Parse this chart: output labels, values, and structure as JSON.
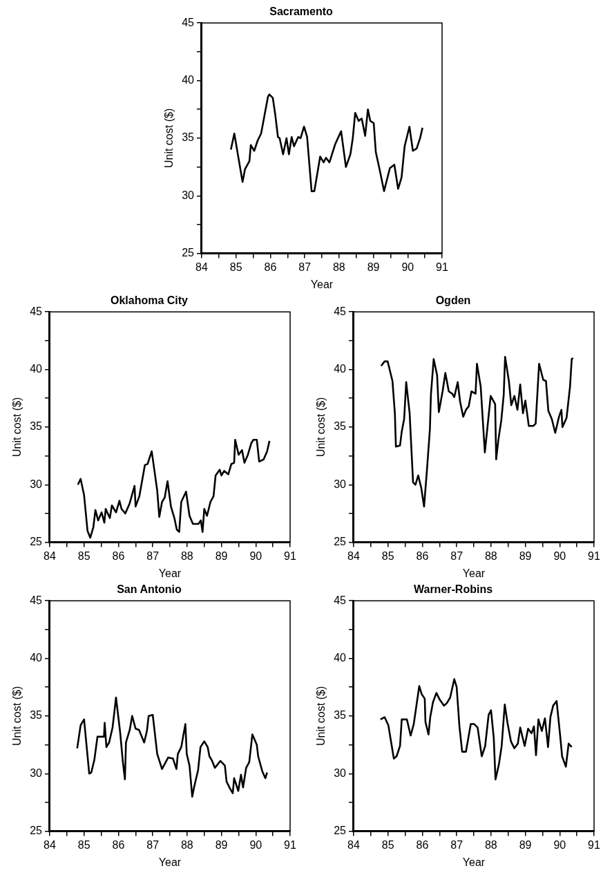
{
  "chart_data": [
    {
      "type": "line",
      "title": "Sacramento",
      "xlabel": "Year",
      "ylabel": "Unit cost ($)",
      "xlim": [
        84,
        91
      ],
      "ylim": [
        25,
        45
      ],
      "xticks": [
        84,
        {
          "value": 84.5,
          "label": null
        },
        85,
        {
          "value": 85.5,
          "label": null
        },
        86,
        {
          "value": 86.5,
          "label": null
        },
        87,
        {
          "value": 87.5,
          "label": null
        },
        88,
        {
          "value": 88.5,
          "label": null
        },
        89,
        {
          "value": 89.5,
          "label": null
        },
        90,
        {
          "value": 90.5,
          "label": null
        },
        91
      ],
      "yticks": [
        25,
        {
          "value": 27.5,
          "label": null
        },
        30,
        {
          "value": 32.5,
          "label": null
        },
        35,
        {
          "value": 37.5,
          "label": null
        },
        40,
        {
          "value": 42.5,
          "label": null
        },
        45
      ],
      "grid": false,
      "legend": false,
      "marker": "none",
      "line_style": "solid",
      "series": [
        {
          "color": "#000000",
          "x": [
            84.85,
            84.95,
            85.19,
            85.26,
            85.39,
            85.43,
            85.53,
            85.63,
            85.73,
            85.93,
            85.97,
            86.07,
            86.14,
            86.22,
            86.27,
            86.37,
            86.47,
            86.54,
            86.62,
            86.69,
            86.81,
            86.88,
            86.98,
            87.07,
            87.2,
            87.28,
            87.45,
            87.55,
            87.62,
            87.72,
            87.89,
            88.06,
            88.2,
            88.33,
            88.4,
            88.47,
            88.57,
            88.66,
            88.76,
            88.84,
            88.91,
            89.01,
            89.07,
            89.18,
            89.31,
            89.48,
            89.61,
            89.72,
            89.82,
            89.91,
            90.05,
            90.15,
            90.26,
            90.36,
            90.43
          ],
          "values": [
            34.0,
            35.4,
            31.2,
            32.3,
            33.0,
            34.4,
            33.9,
            34.8,
            35.4,
            38.6,
            38.8,
            38.5,
            37.1,
            35.1,
            35.0,
            33.6,
            35.0,
            33.6,
            35.1,
            34.3,
            35.1,
            35.0,
            36.0,
            35.1,
            30.4,
            30.4,
            33.4,
            32.9,
            33.3,
            32.9,
            34.5,
            35.6,
            32.5,
            33.6,
            35.0,
            37.2,
            36.5,
            36.7,
            35.2,
            37.5,
            36.5,
            36.3,
            33.8,
            32.3,
            30.4,
            32.4,
            32.7,
            30.6,
            31.6,
            34.3,
            36.0,
            33.9,
            34.1,
            35.0,
            35.9
          ]
        }
      ]
    },
    {
      "type": "line",
      "title": "Oklahoma City",
      "xlabel": "Year",
      "ylabel": "Unit cost ($)",
      "xlim": [
        84,
        91
      ],
      "ylim": [
        25,
        45
      ],
      "xticks": [
        84,
        {
          "value": 84.5,
          "label": null
        },
        85,
        {
          "value": 85.5,
          "label": null
        },
        86,
        {
          "value": 86.5,
          "label": null
        },
        87,
        {
          "value": 87.5,
          "label": null
        },
        88,
        {
          "value": 88.5,
          "label": null
        },
        89,
        {
          "value": 89.5,
          "label": null
        },
        90,
        {
          "value": 90.5,
          "label": null
        },
        91
      ],
      "yticks": [
        25,
        {
          "value": 27.5,
          "label": null
        },
        30,
        {
          "value": 32.5,
          "label": null
        },
        35,
        {
          "value": 37.5,
          "label": null
        },
        40,
        {
          "value": 42.5,
          "label": null
        },
        45
      ],
      "grid": false,
      "legend": false,
      "marker": "none",
      "line_style": "solid",
      "series": [
        {
          "color": "#000000",
          "x": [
            84.82,
            84.9,
            85.0,
            85.1,
            85.18,
            85.27,
            85.33,
            85.41,
            85.51,
            85.59,
            85.63,
            85.75,
            85.81,
            85.93,
            86.03,
            86.09,
            86.2,
            86.33,
            86.47,
            86.5,
            86.61,
            86.77,
            86.85,
            86.97,
            87.13,
            87.19,
            87.27,
            87.35,
            87.43,
            87.53,
            87.63,
            87.7,
            87.77,
            87.83,
            87.97,
            88.07,
            88.17,
            88.33,
            88.4,
            88.45,
            88.5,
            88.58,
            88.68,
            88.77,
            88.83,
            88.95,
            89.0,
            89.08,
            89.2,
            89.29,
            89.37,
            89.4,
            89.5,
            89.6,
            89.67,
            89.77,
            89.87,
            89.93,
            90.03,
            90.1,
            90.23,
            90.33,
            90.4
          ],
          "values": [
            30.0,
            30.5,
            29.1,
            26.0,
            25.4,
            26.3,
            27.8,
            26.9,
            27.6,
            26.7,
            27.9,
            27.1,
            28.2,
            27.6,
            28.6,
            27.9,
            27.5,
            28.4,
            29.9,
            28.1,
            29.0,
            31.7,
            31.8,
            32.9,
            29.5,
            27.2,
            28.5,
            28.9,
            30.3,
            28.1,
            27.1,
            26.1,
            25.9,
            28.5,
            29.4,
            27.3,
            26.6,
            26.6,
            26.9,
            25.9,
            27.9,
            27.3,
            28.5,
            29.0,
            30.8,
            31.3,
            30.8,
            31.2,
            30.9,
            31.8,
            31.9,
            33.9,
            32.6,
            33.0,
            31.9,
            32.6,
            33.6,
            33.9,
            33.9,
            32.0,
            32.2,
            32.9,
            33.8
          ]
        }
      ]
    },
    {
      "type": "line",
      "title": "Ogden",
      "xlabel": "Year",
      "ylabel": "Unit cost ($)",
      "xlim": [
        84,
        91
      ],
      "ylim": [
        25,
        45
      ],
      "xticks": [
        84,
        {
          "value": 84.5,
          "label": null
        },
        85,
        {
          "value": 85.5,
          "label": null
        },
        86,
        {
          "value": 86.5,
          "label": null
        },
        87,
        {
          "value": 87.5,
          "label": null
        },
        88,
        {
          "value": 88.5,
          "label": null
        },
        89,
        {
          "value": 89.5,
          "label": null
        },
        90,
        {
          "value": 90.5,
          "label": null
        },
        91
      ],
      "yticks": [
        25,
        {
          "value": 27.5,
          "label": null
        },
        30,
        {
          "value": 32.5,
          "label": null
        },
        35,
        {
          "value": 37.5,
          "label": null
        },
        40,
        {
          "value": 42.5,
          "label": null
        },
        45
      ],
      "grid": false,
      "legend": false,
      "marker": "none",
      "line_style": "solid",
      "series": [
        {
          "color": "#000000",
          "x": [
            84.8,
            84.9,
            84.99,
            85.13,
            85.2,
            85.23,
            85.35,
            85.4,
            85.47,
            85.53,
            85.63,
            85.73,
            85.8,
            85.88,
            85.97,
            86.05,
            86.13,
            86.22,
            86.25,
            86.33,
            86.43,
            86.48,
            86.59,
            86.67,
            86.77,
            86.87,
            86.93,
            87.03,
            87.1,
            87.19,
            87.27,
            87.35,
            87.43,
            87.55,
            87.59,
            87.7,
            87.82,
            87.99,
            88.12,
            88.15,
            88.21,
            88.3,
            88.37,
            88.41,
            88.52,
            88.59,
            88.68,
            88.77,
            88.85,
            88.93,
            89.0,
            89.1,
            89.23,
            89.3,
            89.4,
            89.52,
            89.6,
            89.67,
            89.77,
            89.87,
            89.98,
            90.05,
            90.08,
            90.2,
            90.3,
            90.35,
            90.39
          ],
          "values": [
            40.3,
            40.7,
            40.7,
            39.0,
            36.2,
            33.3,
            33.4,
            34.6,
            35.7,
            38.9,
            36.2,
            30.2,
            30.0,
            30.8,
            29.7,
            28.1,
            31.1,
            34.8,
            37.8,
            40.9,
            39.5,
            36.3,
            38.1,
            39.7,
            38.1,
            37.9,
            37.6,
            38.9,
            37.2,
            35.9,
            36.5,
            36.8,
            38.1,
            37.9,
            40.5,
            38.5,
            32.8,
            37.7,
            37.0,
            32.2,
            33.8,
            35.6,
            37.8,
            41.1,
            39.0,
            36.9,
            37.7,
            36.5,
            38.7,
            36.2,
            37.3,
            35.1,
            35.1,
            35.3,
            40.5,
            39.1,
            39.0,
            36.4,
            35.7,
            34.5,
            35.9,
            36.5,
            35.0,
            35.8,
            38.5,
            40.9,
            41.0
          ]
        }
      ]
    },
    {
      "type": "line",
      "title": "San Antonio",
      "xlabel": "Year",
      "ylabel": "Unit cost ($)",
      "xlim": [
        84,
        91
      ],
      "ylim": [
        25,
        45
      ],
      "xticks": [
        84,
        {
          "value": 84.5,
          "label": null
        },
        85,
        {
          "value": 85.5,
          "label": null
        },
        86,
        {
          "value": 86.5,
          "label": null
        },
        87,
        {
          "value": 87.5,
          "label": null
        },
        88,
        {
          "value": 88.5,
          "label": null
        },
        89,
        {
          "value": 89.5,
          "label": null
        },
        90,
        {
          "value": 90.5,
          "label": null
        },
        91
      ],
      "yticks": [
        25,
        {
          "value": 27.5,
          "label": null
        },
        30,
        {
          "value": 32.5,
          "label": null
        },
        35,
        {
          "value": 37.5,
          "label": null
        },
        40,
        {
          "value": 42.5,
          "label": null
        },
        45
      ],
      "grid": false,
      "legend": false,
      "marker": "none",
      "line_style": "solid",
      "series": [
        {
          "color": "#000000",
          "x": [
            84.8,
            84.9,
            85.0,
            85.15,
            85.21,
            85.3,
            85.39,
            85.5,
            85.58,
            85.6,
            85.65,
            85.73,
            85.83,
            85.93,
            86.05,
            86.13,
            86.19,
            86.22,
            86.33,
            86.4,
            86.5,
            86.6,
            86.75,
            86.83,
            86.88,
            87.0,
            87.13,
            87.27,
            87.45,
            87.59,
            87.69,
            87.73,
            87.83,
            87.95,
            87.99,
            88.07,
            88.15,
            88.21,
            88.32,
            88.39,
            88.5,
            88.6,
            88.65,
            88.73,
            88.81,
            88.97,
            89.1,
            89.15,
            89.25,
            89.33,
            89.37,
            89.49,
            89.57,
            89.63,
            89.72,
            89.81,
            89.9,
            90.03,
            90.07,
            90.19,
            90.28,
            90.33
          ],
          "values": [
            32.2,
            34.2,
            34.7,
            30.0,
            30.1,
            31.2,
            33.2,
            33.2,
            33.2,
            34.4,
            32.3,
            32.7,
            34.0,
            36.6,
            33.6,
            31.0,
            29.5,
            32.7,
            33.8,
            35.0,
            33.9,
            33.8,
            32.7,
            33.7,
            35.0,
            35.1,
            31.7,
            30.4,
            31.4,
            31.3,
            30.4,
            31.7,
            32.3,
            34.3,
            31.7,
            30.7,
            28.0,
            28.9,
            30.3,
            32.3,
            32.8,
            32.3,
            31.5,
            31.1,
            30.5,
            31.1,
            30.7,
            29.3,
            28.7,
            28.3,
            29.6,
            28.5,
            29.9,
            28.8,
            30.5,
            31.0,
            33.4,
            32.5,
            31.5,
            30.2,
            29.6,
            30.1
          ]
        }
      ]
    },
    {
      "type": "line",
      "title": "Warner-Robins",
      "xlabel": "Year",
      "ylabel": "Unit cost ($)",
      "xlim": [
        84,
        91
      ],
      "ylim": [
        25,
        45
      ],
      "xticks": [
        84,
        {
          "value": 84.5,
          "label": null
        },
        85,
        {
          "value": 85.5,
          "label": null
        },
        86,
        {
          "value": 86.5,
          "label": null
        },
        87,
        {
          "value": 87.5,
          "label": null
        },
        88,
        {
          "value": 88.5,
          "label": null
        },
        89,
        {
          "value": 89.5,
          "label": null
        },
        90,
        {
          "value": 90.5,
          "label": null
        },
        91
      ],
      "yticks": [
        25,
        {
          "value": 27.5,
          "label": null
        },
        30,
        {
          "value": 32.5,
          "label": null
        },
        35,
        {
          "value": 37.5,
          "label": null
        },
        40,
        {
          "value": 42.5,
          "label": null
        },
        45
      ],
      "grid": false,
      "legend": false,
      "marker": "none",
      "line_style": "solid",
      "series": [
        {
          "color": "#000000",
          "x": [
            84.78,
            84.9,
            85.01,
            85.17,
            85.25,
            85.35,
            85.4,
            85.55,
            85.66,
            85.75,
            85.91,
            85.98,
            86.07,
            86.09,
            86.18,
            86.23,
            86.31,
            86.41,
            86.51,
            86.63,
            86.71,
            86.81,
            86.93,
            87.0,
            87.08,
            87.16,
            87.27,
            87.41,
            87.51,
            87.61,
            87.73,
            87.83,
            87.93,
            88.0,
            88.08,
            88.13,
            88.23,
            88.31,
            88.4,
            88.48,
            88.58,
            88.68,
            88.78,
            88.85,
            88.98,
            89.08,
            89.18,
            89.25,
            89.31,
            89.38,
            89.48,
            89.57,
            89.66,
            89.73,
            89.81,
            89.91,
            90.01,
            90.07,
            90.18,
            90.26,
            90.35
          ],
          "values": [
            34.7,
            34.9,
            34.2,
            31.3,
            31.5,
            32.4,
            34.7,
            34.7,
            33.3,
            34.3,
            37.6,
            36.9,
            36.5,
            34.5,
            33.4,
            34.9,
            36.2,
            37.0,
            36.4,
            35.9,
            36.1,
            36.6,
            38.2,
            37.5,
            34.1,
            31.9,
            31.9,
            34.3,
            34.3,
            34.0,
            31.5,
            32.4,
            35.1,
            35.5,
            33.1,
            29.5,
            30.8,
            32.4,
            36.0,
            34.4,
            32.8,
            32.2,
            32.6,
            34.0,
            32.4,
            33.9,
            33.5,
            34.1,
            31.6,
            34.7,
            33.7,
            34.8,
            32.3,
            34.9,
            35.9,
            36.3,
            33.4,
            31.5,
            30.6,
            32.6,
            32.3
          ]
        }
      ]
    }
  ]
}
